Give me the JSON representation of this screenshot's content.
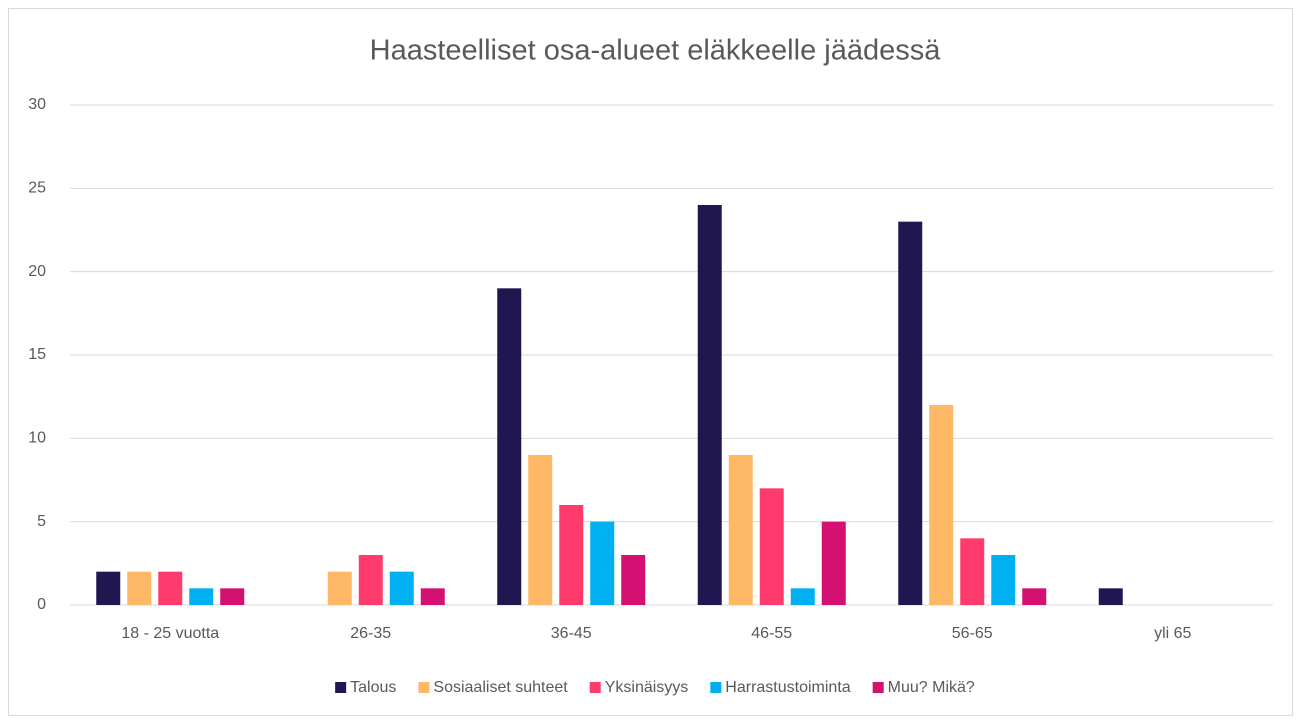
{
  "chart_data": {
    "type": "bar",
    "title": "Haasteelliset osa-alueet eläkkeelle jäädessä",
    "categories": [
      "18 - 25 vuotta",
      "26-35",
      "36-45",
      "46-55",
      "56-65",
      "yli 65"
    ],
    "series": [
      {
        "name": "Talous",
        "color": "#201751",
        "values": [
          2,
          0,
          19,
          24,
          23,
          1
        ]
      },
      {
        "name": "Sosiaaliset suhteet",
        "color": "#ffb966",
        "values": [
          2,
          2,
          9,
          9,
          12,
          0
        ]
      },
      {
        "name": "Yksinäisyys",
        "color": "#ff3b6e",
        "values": [
          2,
          3,
          6,
          7,
          4,
          0
        ]
      },
      {
        "name": "Harrastustoiminta",
        "color": "#00b0f0",
        "values": [
          1,
          2,
          5,
          1,
          3,
          0
        ]
      },
      {
        "name": "Muu? Mikä?",
        "color": "#d41173",
        "values": [
          1,
          1,
          3,
          5,
          1,
          0
        ]
      }
    ],
    "ylim": [
      0,
      30
    ],
    "yticks": [
      0,
      5,
      10,
      15,
      20,
      25,
      30
    ],
    "grid": true,
    "legend": "bottom"
  }
}
